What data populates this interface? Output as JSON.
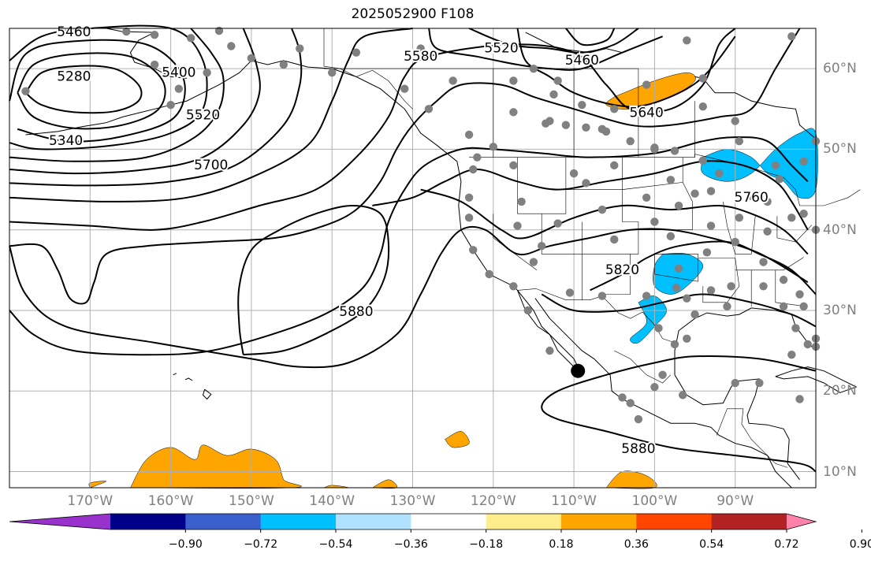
{
  "title": "2025052900 F108",
  "map": {
    "lon_labels": [
      {
        "text": "170°W",
        "lon": -170
      },
      {
        "text": "160°W",
        "lon": -160
      },
      {
        "text": "150°W",
        "lon": -150
      },
      {
        "text": "140°W",
        "lon": -140
      },
      {
        "text": "130°W",
        "lon": -130
      },
      {
        "text": "120°W",
        "lon": -120
      },
      {
        "text": "110°W",
        "lon": -110
      },
      {
        "text": "100°W",
        "lon": -100
      },
      {
        "text": "90°W",
        "lon": -90
      }
    ],
    "lat_labels": [
      {
        "text": "60°N",
        "lat": 60
      },
      {
        "text": "50°N",
        "lat": 50
      },
      {
        "text": "40°N",
        "lat": 40
      },
      {
        "text": "30°N",
        "lat": 30
      },
      {
        "text": "20°N",
        "lat": 20
      },
      {
        "text": "10°N",
        "lat": 10
      }
    ],
    "extent": {
      "lon_min": -180,
      "lon_max": -80,
      "lat_min": 8,
      "lat_max": 65
    },
    "contour_labels": [
      {
        "text": "5460",
        "lon": -172,
        "lat": 64.5
      },
      {
        "text": "5280",
        "lon": -172,
        "lat": 59
      },
      {
        "text": "5400",
        "lon": -159,
        "lat": 59.5
      },
      {
        "text": "5340",
        "lon": -173,
        "lat": 51
      },
      {
        "text": "5520",
        "lon": -156,
        "lat": 54.2
      },
      {
        "text": "5700",
        "lon": -155,
        "lat": 48
      },
      {
        "text": "5580",
        "lon": -129,
        "lat": 61.5
      },
      {
        "text": "5520",
        "lon": -119,
        "lat": 62.5
      },
      {
        "text": "5460",
        "lon": -109,
        "lat": 61
      },
      {
        "text": "5640",
        "lon": -101,
        "lat": 54.5
      },
      {
        "text": "5760",
        "lon": -88,
        "lat": 44
      },
      {
        "text": "5820",
        "lon": -104,
        "lat": 35
      },
      {
        "text": "5880",
        "lon": -137,
        "lat": 29.8
      },
      {
        "text": "5880",
        "lon": -102,
        "lat": 12.8
      }
    ],
    "contour_color": "#000000",
    "station_color": "#808080",
    "marker": {
      "lon": -109.5,
      "lat": 22.5,
      "color": "#000000"
    }
  },
  "colorbar": {
    "colors": [
      "#9932cc",
      "#00008b",
      "#3a5fcd",
      "#00bfff",
      "#b0e2ff",
      "#ffffff",
      "#ffec8b",
      "#ffa500",
      "#ff4500",
      "#b22222",
      "#ff82ab"
    ],
    "ticks": [
      "−0.90",
      "−0.72",
      "−0.54",
      "−0.36",
      "−0.18",
      "0.18",
      "0.36",
      "0.54",
      "0.72",
      "0.90"
    ]
  }
}
